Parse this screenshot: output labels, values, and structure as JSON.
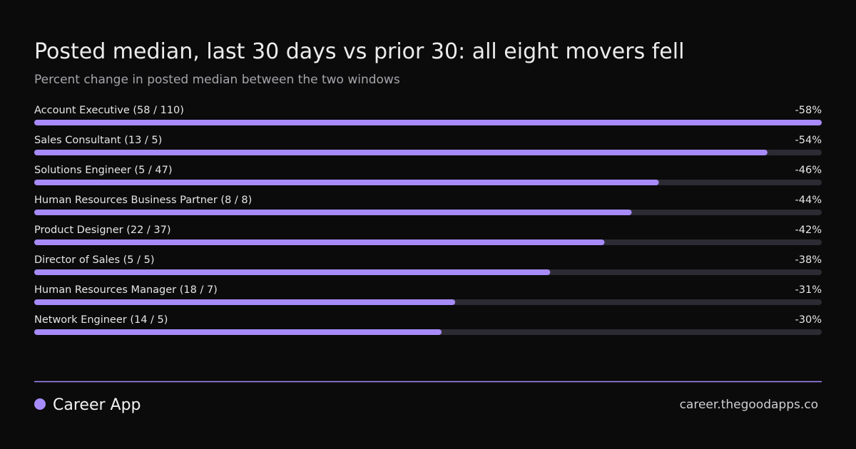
{
  "chart_data": {
    "type": "bar",
    "orientation": "horizontal",
    "title": "Posted median, last 30 days vs prior 30: all eight movers fell",
    "subtitle": "Percent change in posted median between the two windows",
    "categories": [
      "Account Executive (58 / 110)",
      "Sales Consultant (13 / 5)",
      "Solutions Engineer (5 / 47)",
      "Human Resources Business Partner (8 / 8)",
      "Product Designer (22 / 37)",
      "Director of Sales (5 / 5)",
      "Human Resources Manager (18 / 7)",
      "Network Engineer (14 / 5)"
    ],
    "values": [
      -58,
      -54,
      -46,
      -44,
      -42,
      -38,
      -31,
      -30
    ],
    "value_labels": [
      "-58%",
      "-54%",
      "-46%",
      "-44%",
      "-42%",
      "-38%",
      "-31%",
      "-30%"
    ],
    "xlim": [
      0,
      -58
    ],
    "color": "#a78bfa",
    "track_color": "#2c2b33"
  },
  "footer": {
    "brand": "Career App",
    "url": "career.thegoodapps.co"
  }
}
